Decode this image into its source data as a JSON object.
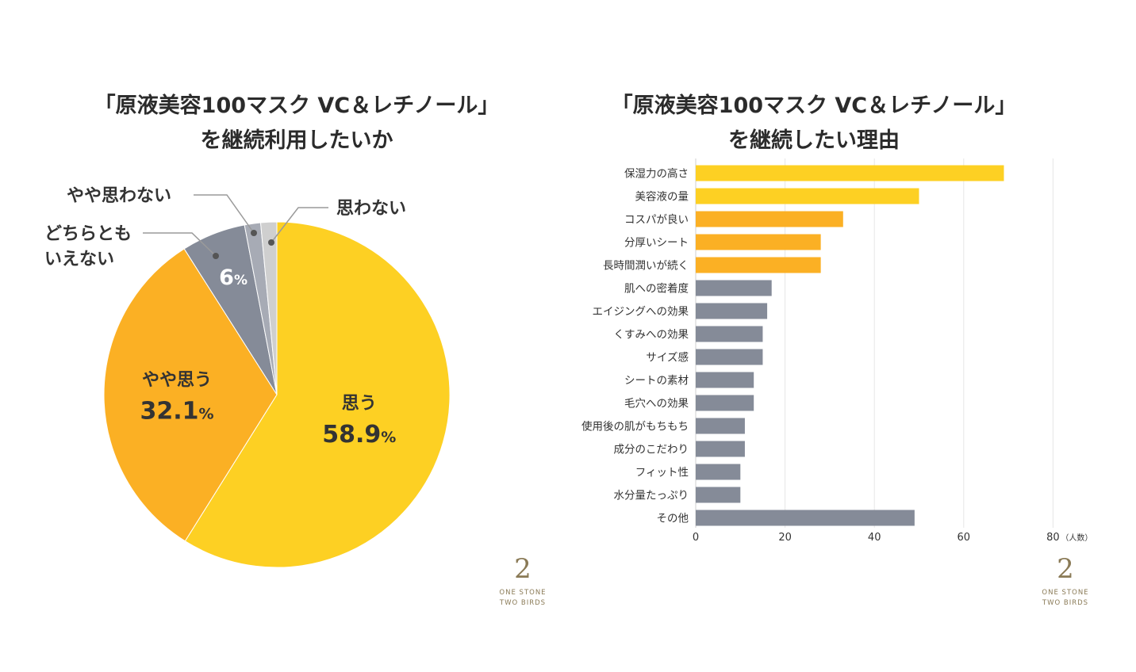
{
  "titles": {
    "pie_line1": "「原液美容100マスク VC＆レチノール」",
    "pie_line2": "を継続利用したいか",
    "bar_line1": "「原液美容100マスク VC＆レチノール」",
    "bar_line2": "を継続したい理由"
  },
  "chart_data": [
    {
      "type": "pie",
      "title": "「原液美容100マスク VC＆レチノール」を継続利用したいか",
      "slices": [
        {
          "label": "思う",
          "value": 58.9,
          "display": "58.9",
          "color": "#FDD023"
        },
        {
          "label": "やや思う",
          "value": 32.1,
          "display": "32.1",
          "color": "#FBB024"
        },
        {
          "label": "どちらとも いえない",
          "value": 6.0,
          "display": "6",
          "color": "#858B98"
        },
        {
          "label": "やや思わない",
          "value": 1.5,
          "display": "",
          "color": "#A7ABB5"
        },
        {
          "label": "思わない",
          "value": 1.5,
          "display": "",
          "color": "#CFCFCF"
        }
      ],
      "percent_sign": "%",
      "callout_labels": {
        "neither_line1": "どちらとも",
        "neither_line2": "いえない",
        "somewhat_not": "やや思わない",
        "not": "思わない"
      }
    },
    {
      "type": "bar",
      "orientation": "horizontal",
      "title": "「原液美容100マスク VC＆レチノール」を継続したい理由",
      "categories": [
        "保湿力の高さ",
        "美容液の量",
        "コスパが良い",
        "分厚いシート",
        "長時間潤いが続く",
        "肌への密着度",
        "エイジングへの効果",
        "くすみへの効果",
        "サイズ感",
        "シートの素材",
        "毛穴への効果",
        "使用後の肌がもちもち",
        "成分のこだわり",
        "フィット性",
        "水分量たっぷり",
        "その他"
      ],
      "values": [
        69,
        50,
        33,
        28,
        28,
        17,
        16,
        15,
        15,
        13,
        13,
        11,
        11,
        10,
        10,
        49
      ],
      "bar_colors": [
        "#FDD023",
        "#FDD023",
        "#FBB024",
        "#FBB024",
        "#FBB024",
        "#858B98",
        "#858B98",
        "#858B98",
        "#858B98",
        "#858B98",
        "#858B98",
        "#858B98",
        "#858B98",
        "#858B98",
        "#858B98",
        "#858B98"
      ],
      "xlim": [
        0,
        80
      ],
      "xticks": [
        0,
        20,
        40,
        60,
        80
      ],
      "xunit": "（人数）"
    }
  ],
  "logo": {
    "mark": "2",
    "line1": "ONE STONE",
    "line2": "TWO BIRDS"
  }
}
